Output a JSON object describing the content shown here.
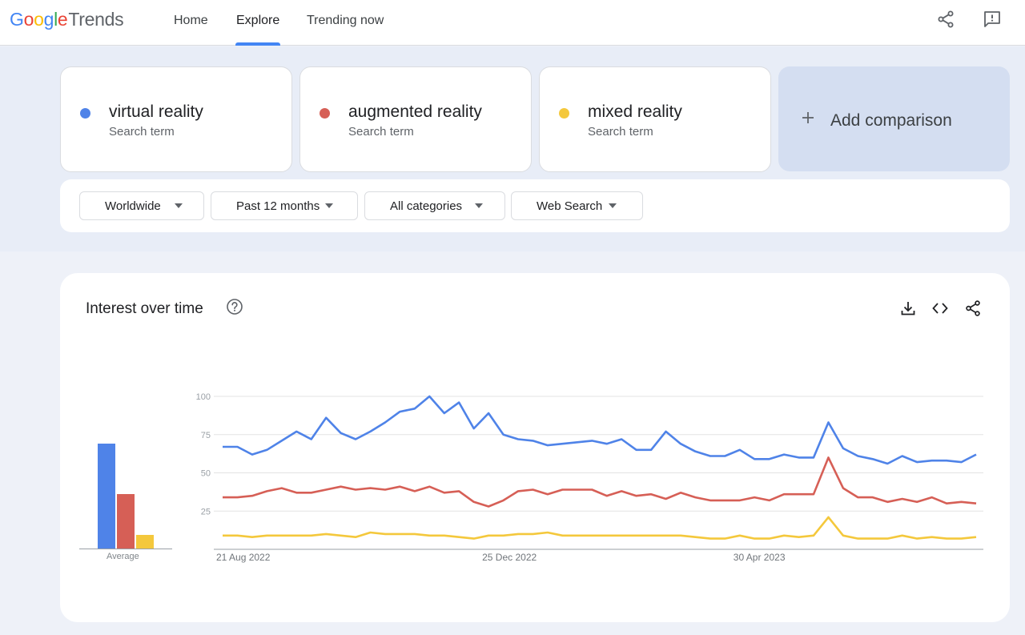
{
  "header": {
    "logo_google": "Google",
    "logo_trends": "Trends",
    "nav": [
      "Home",
      "Explore",
      "Trending now"
    ],
    "active_nav": "Explore"
  },
  "terms": [
    {
      "name": "virtual reality",
      "sub": "Search term",
      "color": "#4f83e8"
    },
    {
      "name": "augmented reality",
      "sub": "Search term",
      "color": "#d65f56"
    },
    {
      "name": "mixed reality",
      "sub": "Search term",
      "color": "#f4c83c"
    }
  ],
  "add_comparison": "Add comparison",
  "filters": [
    "Worldwide",
    "Past 12 months",
    "All categories",
    "Web Search"
  ],
  "chart_card": {
    "title": "Interest over time",
    "average_label": "Average"
  },
  "chart_data": {
    "type": "line",
    "ylim": [
      0,
      100
    ],
    "yticks": [
      25,
      50,
      75,
      100
    ],
    "x_labels": [
      "21 Aug 2022",
      "25 Dec 2022",
      "30 Apr 2023"
    ],
    "averages": [
      {
        "name": "virtual reality",
        "value": 69
      },
      {
        "name": "augmented reality",
        "value": 36
      },
      {
        "name": "mixed reality",
        "value": 9
      }
    ],
    "series": [
      {
        "name": "virtual reality",
        "color": "#4f83e8",
        "values": [
          67,
          67,
          62,
          65,
          71,
          77,
          72,
          86,
          76,
          72,
          77,
          83,
          90,
          92,
          100,
          89,
          96,
          79,
          89,
          75,
          72,
          71,
          68,
          69,
          70,
          71,
          69,
          72,
          65,
          65,
          77,
          69,
          64,
          61,
          61,
          65,
          59,
          59,
          62,
          60,
          60,
          83,
          66,
          61,
          59,
          56,
          61,
          57,
          58,
          58,
          57,
          62
        ]
      },
      {
        "name": "augmented reality",
        "color": "#d65f56",
        "values": [
          34,
          34,
          35,
          38,
          40,
          37,
          37,
          39,
          41,
          39,
          40,
          39,
          41,
          38,
          41,
          37,
          38,
          31,
          28,
          32,
          38,
          39,
          36,
          39,
          39,
          39,
          35,
          38,
          35,
          36,
          33,
          37,
          34,
          32,
          32,
          32,
          34,
          32,
          36,
          36,
          36,
          60,
          40,
          34,
          34,
          31,
          33,
          31,
          34,
          30,
          31,
          30
        ]
      },
      {
        "name": "mixed reality",
        "color": "#f4c83c",
        "values": [
          9,
          9,
          8,
          9,
          9,
          9,
          9,
          10,
          9,
          8,
          11,
          10,
          10,
          10,
          9,
          9,
          8,
          7,
          9,
          9,
          10,
          10,
          11,
          9,
          9,
          9,
          9,
          9,
          9,
          9,
          9,
          9,
          8,
          7,
          7,
          9,
          7,
          7,
          9,
          8,
          9,
          21,
          9,
          7,
          7,
          7,
          9,
          7,
          8,
          7,
          7,
          8
        ]
      }
    ]
  }
}
